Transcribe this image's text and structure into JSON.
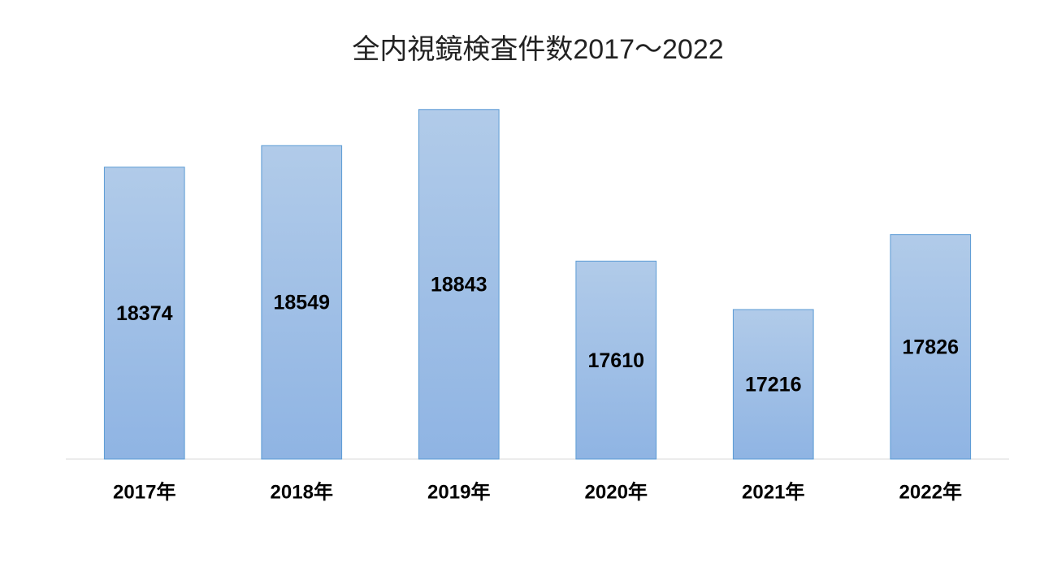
{
  "chart_data": {
    "type": "bar",
    "title": "全内視鏡検査件数2017～2022",
    "categories": [
      "2017年",
      "2018年",
      "2019年",
      "2020年",
      "2021年",
      "2022年"
    ],
    "values": [
      18374,
      18549,
      18843,
      17610,
      17216,
      17826
    ],
    "color": "#5b9bd5",
    "ylim": [
      16000,
      19000
    ]
  }
}
